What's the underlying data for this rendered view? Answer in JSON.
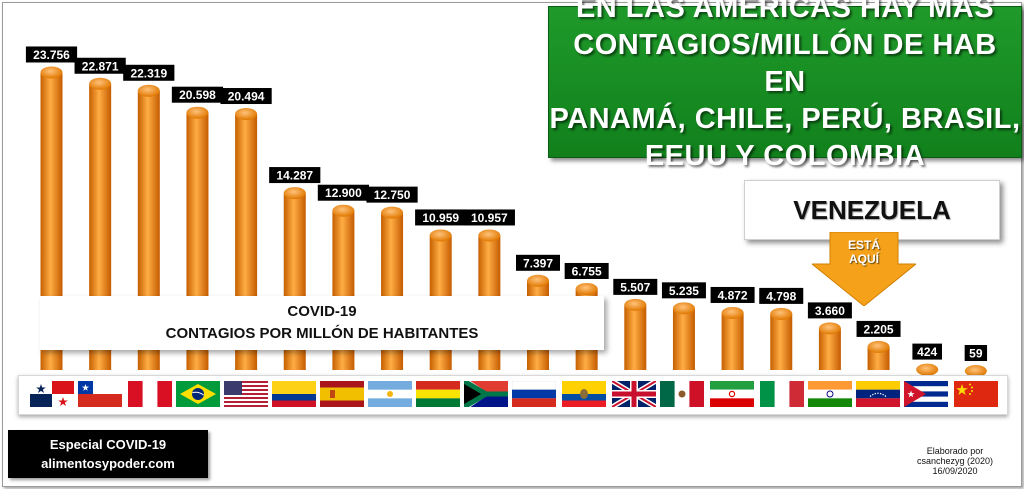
{
  "headline": {
    "line1": "EN LAS AMÉRICAS HAY MÁS",
    "line2": "CONTAGIOS/MILLÓN DE HAB EN",
    "line3": "PANAMÁ, CHILE, PERÚ, BRASIL,",
    "line4": "EEUU Y COLOMBIA"
  },
  "callout": {
    "country": "VENEZUELA",
    "arrow_line1": "ESTÁ",
    "arrow_line2": "AQUÍ"
  },
  "subtitle": {
    "line1": "COVID-19",
    "line2": "CONTAGIOS POR MILLÓN DE HABITANTES"
  },
  "brand": {
    "line1": "Especial COVID-19",
    "line2": "alimentosypoder.com"
  },
  "credit": {
    "line1": "Elaborado por",
    "line2": "csanchezyg (2020)",
    "line3": "16/09/2020"
  },
  "colors": {
    "bar": "#f08a12",
    "headline_bg": "#1a9225",
    "arrow": "#f5a21a",
    "label_bg": "#000000"
  },
  "chart_data": {
    "type": "bar",
    "categories": [
      "panama-flag",
      "chile-flag",
      "peru-flag",
      "brazil-flag",
      "usa-flag",
      "colombia-flag",
      "spain-flag",
      "argentina-flag",
      "bolivia-flag",
      "south-africa-flag",
      "russia-flag",
      "ecuador-flag",
      "uk-flag",
      "mexico-flag",
      "iran-flag",
      "italy-flag",
      "india-flag",
      "venezuela-flag",
      "cuba-flag",
      "china-flag"
    ],
    "values": [
      23756,
      22871,
      22319,
      20598,
      20494,
      14287,
      12900,
      12750,
      10959,
      10957,
      7397,
      6755,
      5507,
      5235,
      4872,
      4798,
      3660,
      2205,
      424,
      59
    ],
    "labels": [
      "23.756",
      "22.871",
      "22.319",
      "20.598",
      "20.494",
      "14.287",
      "12.900",
      "12.750",
      "10.959",
      "10.957",
      "7.397",
      "6.755",
      "5.507",
      "5.235",
      "4.872",
      "4.798",
      "3.660",
      "2.205",
      "424",
      "59"
    ],
    "ylim": [
      0,
      25600
    ],
    "grid": false,
    "legend": "none"
  }
}
